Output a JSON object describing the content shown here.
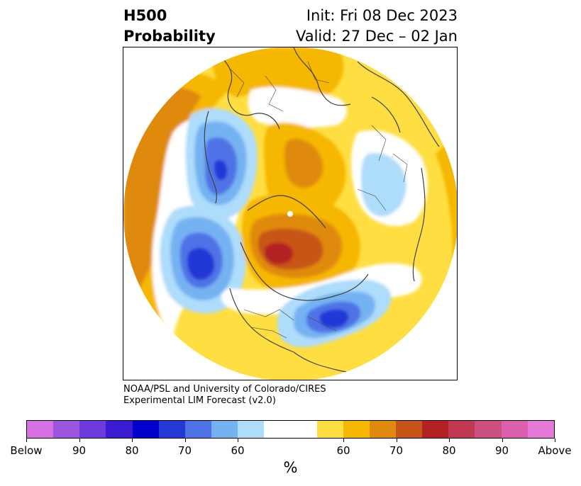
{
  "header": {
    "title_line1": "H500",
    "title_line2": "Probability",
    "init_label": "Init: Fri 08 Dec 2023",
    "valid_label": "Valid: 27 Dec – 02 Jan"
  },
  "credit": {
    "line1": "NOAA/PSL and University of Colorado/CIRES",
    "line2": "Experimental LIM Forecast (v2.0)"
  },
  "colorbar": {
    "unit_label": "%",
    "colors": [
      "#d670e3",
      "#9b55de",
      "#6c3bd9",
      "#3a1bd2",
      "#0000cc",
      "#2438d6",
      "#4f73e6",
      "#74b2f2",
      "#aedcfb",
      "#ffffff",
      "#ffffff",
      "#ffde42",
      "#f5b700",
      "#e08a10",
      "#c75418",
      "#b22222",
      "#c23a52",
      "#cd4f80",
      "#da60ad",
      "#e67ad8"
    ],
    "ticks": [
      "Below",
      "90",
      "80",
      "70",
      "60",
      "60",
      "70",
      "80",
      "90",
      "Above"
    ]
  },
  "map": {
    "colors": {
      "light_yellow": "#ffde42",
      "gold": "#f5b700",
      "orange": "#e08a10",
      "dark_orange": "#c75418",
      "red": "#b22222",
      "light_blue": "#aedcfb",
      "sky_blue": "#74b2f2",
      "mid_blue": "#4f73e6",
      "deep_blue": "#2438d6"
    }
  }
}
